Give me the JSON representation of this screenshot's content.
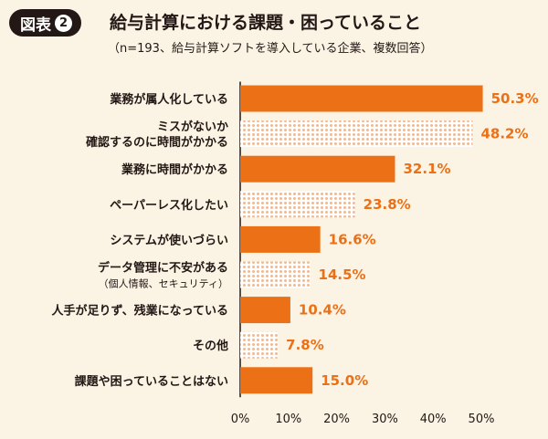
{
  "header": {
    "figure_label": "図表",
    "figure_number": "2",
    "title": "給与計算における課題・困っていること",
    "subtitle": "（n=193、給与計算ソフトを導入している企業、複数回答）"
  },
  "colors": {
    "bar": "#ec7016",
    "bar_pattern_dot": "#f2b98f",
    "value_label": "#ec7016",
    "background": "#fbf3e3"
  },
  "chart_data": {
    "type": "bar",
    "orientation": "horizontal",
    "categories": [
      {
        "lines": [
          "業務が属人化している"
        ],
        "sub": ""
      },
      {
        "lines": [
          "ミスがないか",
          "確認するのに時間がかかる"
        ],
        "sub": ""
      },
      {
        "lines": [
          "業務に時間がかかる"
        ],
        "sub": ""
      },
      {
        "lines": [
          "ペーパーレス化したい"
        ],
        "sub": ""
      },
      {
        "lines": [
          "システムが使いづらい"
        ],
        "sub": ""
      },
      {
        "lines": [
          "データ管理に不安がある"
        ],
        "sub": "（個人情報、セキュリティ）"
      },
      {
        "lines": [
          "人手が足りず、残業になっている"
        ],
        "sub": ""
      },
      {
        "lines": [
          "その他"
        ],
        "sub": ""
      },
      {
        "lines": [
          "課題や困っていることはない"
        ],
        "sub": ""
      }
    ],
    "values": [
      50.3,
      48.2,
      32.1,
      23.8,
      16.6,
      14.5,
      10.4,
      7.8,
      15.0
    ],
    "value_labels": [
      "50.3%",
      "48.2%",
      "32.1%",
      "23.8%",
      "16.6%",
      "14.5%",
      "10.4%",
      "7.8%",
      "15.0%"
    ],
    "fill_styles": [
      "solid",
      "dotted",
      "solid",
      "dotted",
      "solid",
      "dotted",
      "solid",
      "dotted",
      "solid"
    ],
    "x_ticks": [
      "0%",
      "10%",
      "20%",
      "30%",
      "40%",
      "50%"
    ],
    "xlim": [
      0,
      50
    ],
    "grid": false
  }
}
